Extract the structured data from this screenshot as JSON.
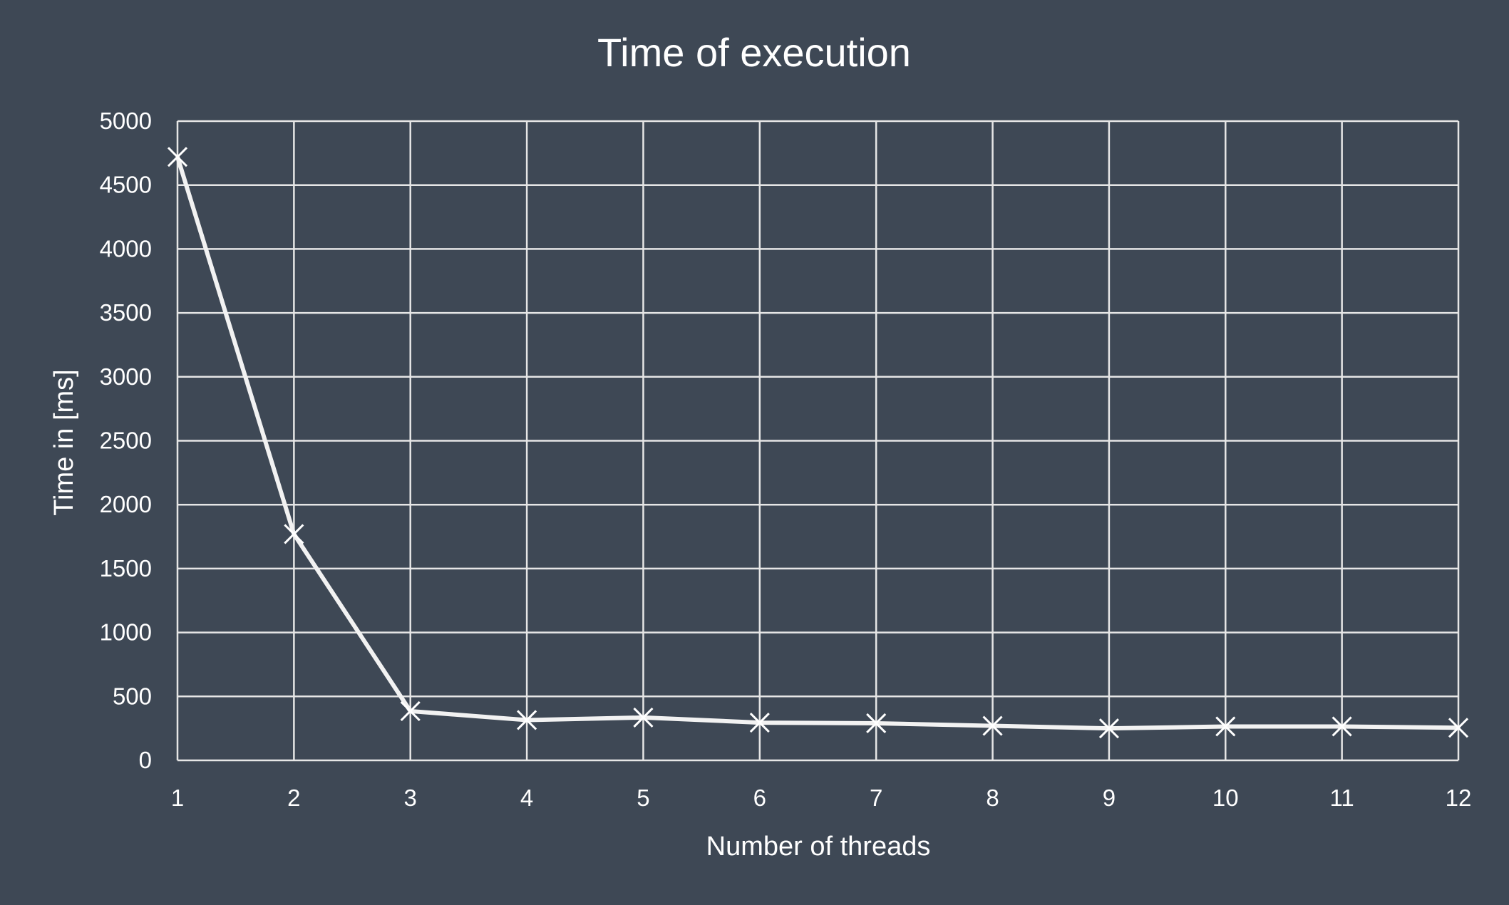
{
  "chart_data": {
    "type": "line",
    "title": "Time of execution",
    "xlabel": "Number of threads",
    "ylabel": "Time in [ms]",
    "x": [
      1,
      2,
      3,
      4,
      5,
      6,
      7,
      8,
      9,
      10,
      11,
      12
    ],
    "x_ticks": [
      "1",
      "2",
      "3",
      "4",
      "5",
      "6",
      "7",
      "8",
      "9",
      "10",
      "11",
      "12"
    ],
    "y_ticks": [
      "0",
      "500",
      "1000",
      "1500",
      "2000",
      "2500",
      "3000",
      "3500",
      "4000",
      "4500",
      "5000"
    ],
    "xlim": [
      1,
      12
    ],
    "ylim": [
      0,
      5000
    ],
    "grid": true,
    "legend": "none",
    "marker": "x",
    "colors": {
      "background": "#3e4855",
      "line": "#f2f2f2",
      "grid": "#e6e6e6",
      "text": "#ffffff"
    },
    "series": [
      {
        "values": [
          4720,
          1770,
          385,
          315,
          335,
          295,
          290,
          270,
          250,
          265,
          265,
          255
        ]
      }
    ]
  }
}
